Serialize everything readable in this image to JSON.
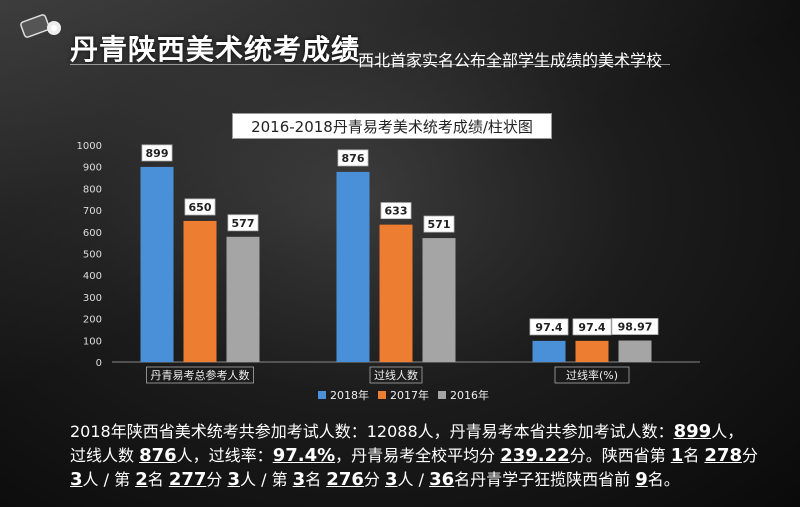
{
  "header": {
    "title": "丹青陕西美术统考成绩",
    "subtitle": "西北首家实名公布全部学生成绩的美术学校"
  },
  "chart_data": {
    "type": "bar",
    "title": "2016-2018丹青易考美术统考成绩/柱状图",
    "categories": [
      "丹青易考总参考人数",
      "过线人数",
      "过线率(%)"
    ],
    "series": [
      {
        "name": "2018年",
        "color": "#4a90d9",
        "values": [
          899,
          876,
          97.4
        ],
        "labels": [
          "899",
          "876",
          "97.4"
        ]
      },
      {
        "name": "2017年",
        "color": "#ed7d31",
        "values": [
          650,
          633,
          97.4
        ],
        "labels": [
          "650",
          "633",
          "97.4"
        ]
      },
      {
        "name": "2016年",
        "color": "#a5a5a5",
        "values": [
          577,
          571,
          98.97
        ],
        "labels": [
          "577",
          "571",
          "98.97"
        ]
      }
    ],
    "ylim": [
      0,
      1000
    ],
    "yticks": [
      "0",
      "100",
      "200",
      "300",
      "400",
      "500",
      "600",
      "700",
      "800",
      "900",
      "1000"
    ],
    "legend_position": "bottom",
    "grid": false
  },
  "footer": {
    "line1_a": "2018年陕西省美术统考共参加考试人数：12088人，丹青易考本省共参加考试人数：",
    "line1_b": "899",
    "line1_c": "人，",
    "line2_a": "过线人数 ",
    "line2_b": "876",
    "line2_c": "人，过线率：",
    "line2_d": "97.4%",
    "line2_e": "，丹青易考全校平均分 ",
    "line2_f": "239.22",
    "line2_g": "分。陕西省第 ",
    "line2_h": "1",
    "line2_i": "名 ",
    "line2_j": "278",
    "line2_k": "分",
    "line3_a": "3",
    "line3_b": "人 / 第 ",
    "line3_c": "2",
    "line3_d": "名 ",
    "line3_e": "277",
    "line3_f": "分 ",
    "line3_g": "3",
    "line3_h": "人 / 第 ",
    "line3_i": "3",
    "line3_j": "名 ",
    "line3_k": "276",
    "line3_l": "分 ",
    "line3_m": "3",
    "line3_n": "人 / ",
    "line3_o": "36",
    "line3_p": "名丹青学子狂揽陕西省前 ",
    "line3_q": "9",
    "line3_r": "名。"
  }
}
